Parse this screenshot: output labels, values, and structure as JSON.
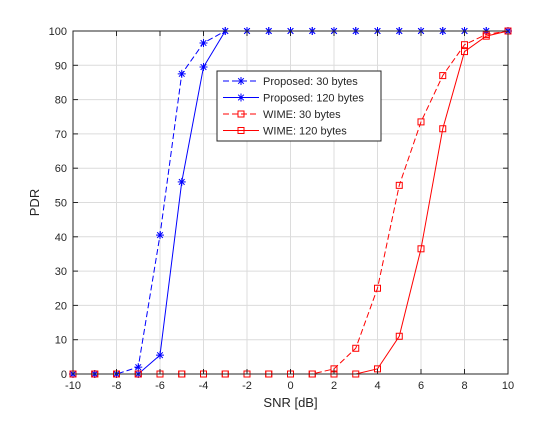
{
  "chart_data": {
    "type": "line",
    "xlabel": "SNR [dB]",
    "ylabel": "PDR",
    "xlim": [
      -10,
      10
    ],
    "ylim": [
      0,
      100
    ],
    "x_ticks": [
      "-10",
      "-8",
      "-6",
      "-4",
      "-2",
      "0",
      "2",
      "4",
      "6",
      "8",
      "10"
    ],
    "y_ticks": [
      "0",
      "10",
      "20",
      "30",
      "40",
      "50",
      "60",
      "70",
      "80",
      "90",
      "100"
    ],
    "grid": true,
    "legend_position": "upper-center",
    "x": [
      -10,
      -9,
      -8,
      -7,
      -6,
      -5,
      -4,
      -3,
      -2,
      -1,
      0,
      1,
      2,
      3,
      4,
      5,
      6,
      7,
      8,
      9,
      10
    ],
    "series": [
      {
        "name": "Proposed: 30 bytes",
        "color": "#0000ff",
        "line_style": "dashed",
        "marker": "asterisk",
        "values": [
          0,
          0,
          0,
          2,
          40.5,
          87.5,
          96.5,
          100,
          100,
          100,
          100,
          100,
          100,
          100,
          100,
          100,
          100,
          100,
          100,
          100,
          100
        ]
      },
      {
        "name": "Proposed: 120 bytes",
        "color": "#0000ff",
        "line_style": "solid",
        "marker": "asterisk",
        "values": [
          0,
          0,
          0,
          0,
          5.5,
          56,
          89.5,
          100,
          100,
          100,
          100,
          100,
          100,
          100,
          100,
          100,
          100,
          100,
          100,
          100,
          100
        ]
      },
      {
        "name": "WIME: 30 bytes",
        "color": "#ff0000",
        "line_style": "dashed",
        "marker": "square",
        "values": [
          0,
          0,
          0,
          0,
          0,
          0,
          0,
          0,
          0,
          0,
          0,
          0,
          1.5,
          7.5,
          25,
          55,
          73.5,
          87,
          96,
          99,
          100
        ]
      },
      {
        "name": "WIME: 120 bytes",
        "color": "#ff0000",
        "line_style": "solid",
        "marker": "square",
        "values": [
          0,
          0,
          0,
          0,
          0,
          0,
          0,
          0,
          0,
          0,
          0,
          0,
          0,
          0,
          1.5,
          11,
          36.5,
          71.5,
          94,
          98.5,
          100
        ]
      }
    ]
  }
}
